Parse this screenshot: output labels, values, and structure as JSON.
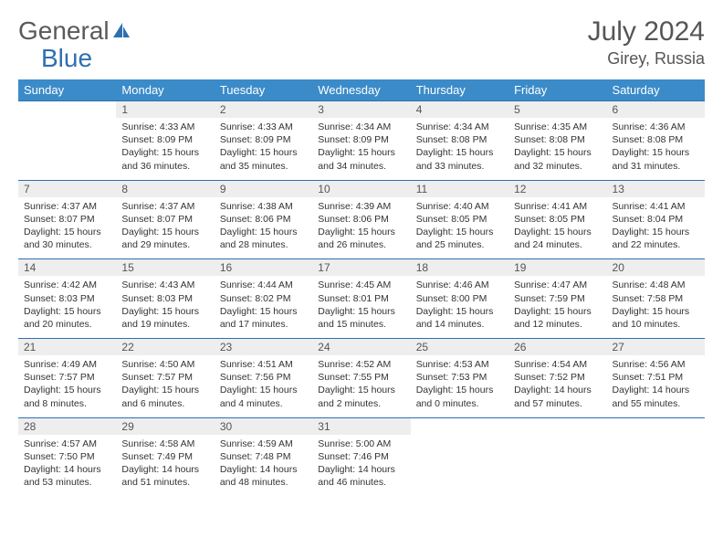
{
  "brand": {
    "part1": "General",
    "part2": "Blue"
  },
  "title": "July 2024",
  "location": "Girey, Russia",
  "styling": {
    "header_bg": "#3b8bc9",
    "header_text": "#ffffff",
    "daynum_bg": "#eeeeee",
    "row_divider": "#2f6fb0",
    "body_text": "#333333",
    "title_color": "#555555",
    "page_bg": "#ffffff",
    "title_fontsize": 30,
    "location_fontsize": 18,
    "dow_fontsize": 13,
    "daynum_fontsize": 12,
    "cell_fontsize": 10.5
  },
  "dow": [
    "Sunday",
    "Monday",
    "Tuesday",
    "Wednesday",
    "Thursday",
    "Friday",
    "Saturday"
  ],
  "weeks": [
    [
      null,
      {
        "n": "1",
        "sr": "4:33 AM",
        "ss": "8:09 PM",
        "dl": "15 hours and 36 minutes."
      },
      {
        "n": "2",
        "sr": "4:33 AM",
        "ss": "8:09 PM",
        "dl": "15 hours and 35 minutes."
      },
      {
        "n": "3",
        "sr": "4:34 AM",
        "ss": "8:09 PM",
        "dl": "15 hours and 34 minutes."
      },
      {
        "n": "4",
        "sr": "4:34 AM",
        "ss": "8:08 PM",
        "dl": "15 hours and 33 minutes."
      },
      {
        "n": "5",
        "sr": "4:35 AM",
        "ss": "8:08 PM",
        "dl": "15 hours and 32 minutes."
      },
      {
        "n": "6",
        "sr": "4:36 AM",
        "ss": "8:08 PM",
        "dl": "15 hours and 31 minutes."
      }
    ],
    [
      {
        "n": "7",
        "sr": "4:37 AM",
        "ss": "8:07 PM",
        "dl": "15 hours and 30 minutes."
      },
      {
        "n": "8",
        "sr": "4:37 AM",
        "ss": "8:07 PM",
        "dl": "15 hours and 29 minutes."
      },
      {
        "n": "9",
        "sr": "4:38 AM",
        "ss": "8:06 PM",
        "dl": "15 hours and 28 minutes."
      },
      {
        "n": "10",
        "sr": "4:39 AM",
        "ss": "8:06 PM",
        "dl": "15 hours and 26 minutes."
      },
      {
        "n": "11",
        "sr": "4:40 AM",
        "ss": "8:05 PM",
        "dl": "15 hours and 25 minutes."
      },
      {
        "n": "12",
        "sr": "4:41 AM",
        "ss": "8:05 PM",
        "dl": "15 hours and 24 minutes."
      },
      {
        "n": "13",
        "sr": "4:41 AM",
        "ss": "8:04 PM",
        "dl": "15 hours and 22 minutes."
      }
    ],
    [
      {
        "n": "14",
        "sr": "4:42 AM",
        "ss": "8:03 PM",
        "dl": "15 hours and 20 minutes."
      },
      {
        "n": "15",
        "sr": "4:43 AM",
        "ss": "8:03 PM",
        "dl": "15 hours and 19 minutes."
      },
      {
        "n": "16",
        "sr": "4:44 AM",
        "ss": "8:02 PM",
        "dl": "15 hours and 17 minutes."
      },
      {
        "n": "17",
        "sr": "4:45 AM",
        "ss": "8:01 PM",
        "dl": "15 hours and 15 minutes."
      },
      {
        "n": "18",
        "sr": "4:46 AM",
        "ss": "8:00 PM",
        "dl": "15 hours and 14 minutes."
      },
      {
        "n": "19",
        "sr": "4:47 AM",
        "ss": "7:59 PM",
        "dl": "15 hours and 12 minutes."
      },
      {
        "n": "20",
        "sr": "4:48 AM",
        "ss": "7:58 PM",
        "dl": "15 hours and 10 minutes."
      }
    ],
    [
      {
        "n": "21",
        "sr": "4:49 AM",
        "ss": "7:57 PM",
        "dl": "15 hours and 8 minutes."
      },
      {
        "n": "22",
        "sr": "4:50 AM",
        "ss": "7:57 PM",
        "dl": "15 hours and 6 minutes."
      },
      {
        "n": "23",
        "sr": "4:51 AM",
        "ss": "7:56 PM",
        "dl": "15 hours and 4 minutes."
      },
      {
        "n": "24",
        "sr": "4:52 AM",
        "ss": "7:55 PM",
        "dl": "15 hours and 2 minutes."
      },
      {
        "n": "25",
        "sr": "4:53 AM",
        "ss": "7:53 PM",
        "dl": "15 hours and 0 minutes."
      },
      {
        "n": "26",
        "sr": "4:54 AM",
        "ss": "7:52 PM",
        "dl": "14 hours and 57 minutes."
      },
      {
        "n": "27",
        "sr": "4:56 AM",
        "ss": "7:51 PM",
        "dl": "14 hours and 55 minutes."
      }
    ],
    [
      {
        "n": "28",
        "sr": "4:57 AM",
        "ss": "7:50 PM",
        "dl": "14 hours and 53 minutes."
      },
      {
        "n": "29",
        "sr": "4:58 AM",
        "ss": "7:49 PM",
        "dl": "14 hours and 51 minutes."
      },
      {
        "n": "30",
        "sr": "4:59 AM",
        "ss": "7:48 PM",
        "dl": "14 hours and 48 minutes."
      },
      {
        "n": "31",
        "sr": "5:00 AM",
        "ss": "7:46 PM",
        "dl": "14 hours and 46 minutes."
      },
      null,
      null,
      null
    ]
  ],
  "labels": {
    "sunrise": "Sunrise:",
    "sunset": "Sunset:",
    "daylight": "Daylight:"
  }
}
